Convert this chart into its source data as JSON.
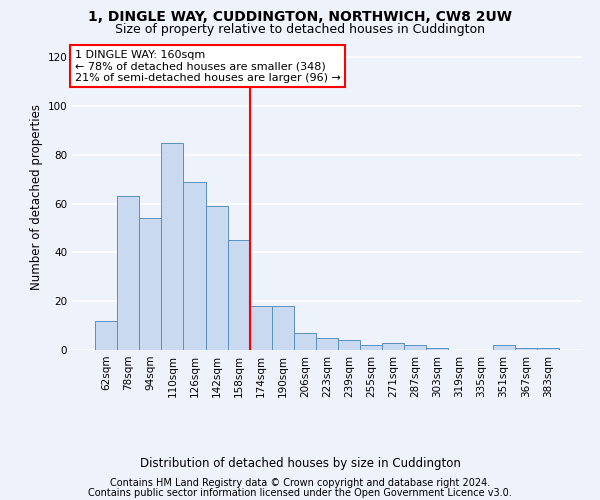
{
  "title_line1": "1, DINGLE WAY, CUDDINGTON, NORTHWICH, CW8 2UW",
  "title_line2": "Size of property relative to detached houses in Cuddington",
  "xlabel": "Distribution of detached houses by size in Cuddington",
  "ylabel": "Number of detached properties",
  "categories": [
    "62sqm",
    "78sqm",
    "94sqm",
    "110sqm",
    "126sqm",
    "142sqm",
    "158sqm",
    "174sqm",
    "190sqm",
    "206sqm",
    "223sqm",
    "239sqm",
    "255sqm",
    "271sqm",
    "287sqm",
    "303sqm",
    "319sqm",
    "335sqm",
    "351sqm",
    "367sqm",
    "383sqm"
  ],
  "values": [
    12,
    63,
    54,
    85,
    69,
    59,
    45,
    18,
    18,
    7,
    5,
    4,
    2,
    3,
    2,
    1,
    0,
    0,
    2,
    1,
    1
  ],
  "bar_color": "#c9d9f0",
  "bar_edge_color": "#5a8fc3",
  "vline_x": 6.5,
  "annotation_line1": "1 DINGLE WAY: 160sqm",
  "annotation_line2": "← 78% of detached houses are smaller (348)",
  "annotation_line3": "21% of semi-detached houses are larger (96) →",
  "annotation_box_color": "white",
  "annotation_box_edge_color": "red",
  "vline_color": "red",
  "ylim": [
    0,
    125
  ],
  "yticks": [
    0,
    20,
    40,
    60,
    80,
    100,
    120
  ],
  "background_color": "#eef2fb",
  "grid_color": "white",
  "footer_line1": "Contains HM Land Registry data © Crown copyright and database right 2024.",
  "footer_line2": "Contains public sector information licensed under the Open Government Licence v3.0.",
  "title_fontsize": 10,
  "subtitle_fontsize": 9,
  "axis_label_fontsize": 8.5,
  "tick_fontsize": 7.5,
  "annotation_fontsize": 8,
  "footer_fontsize": 7
}
